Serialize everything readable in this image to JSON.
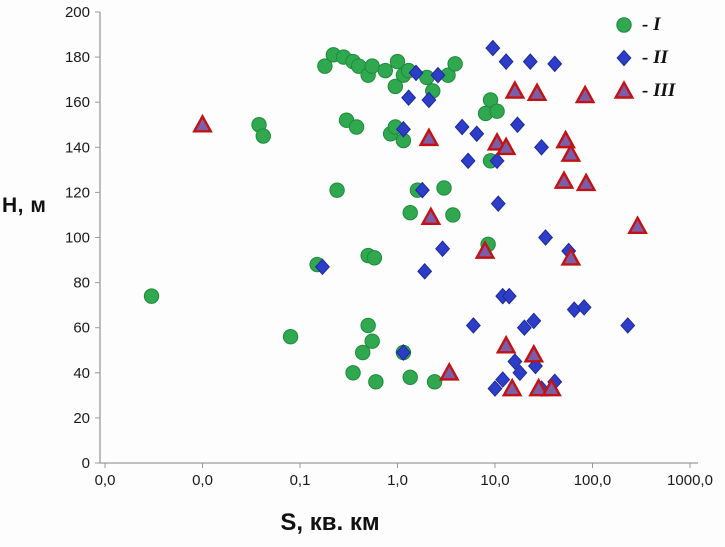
{
  "chart_data": {
    "type": "scatter",
    "title": "",
    "x_axis": {
      "label": "S, кв. км",
      "scale": "log",
      "min": 0.001,
      "max": 1000,
      "tick_values": [
        0.001,
        0.01,
        0.1,
        1,
        10,
        100,
        1000
      ],
      "tick_labels": [
        "0,0",
        "0,0",
        "0,1",
        "1,0",
        "10,0",
        "100,0",
        "1000,0"
      ]
    },
    "y_axis": {
      "label": "Н, м",
      "min": 0,
      "max": 200,
      "tick_step": 20,
      "tick_labels": [
        "0",
        "20",
        "40",
        "60",
        "80",
        "100",
        "120",
        "140",
        "160",
        "180",
        "200"
      ]
    },
    "grid": "off",
    "legend": {
      "position": "top-right",
      "entries": [
        {
          "label": "- I",
          "marker": "circle",
          "fill": "#2fa84f",
          "stroke": "#1f8a3c"
        },
        {
          "label": "- II",
          "marker": "diamond",
          "fill": "#2e3dc8",
          "stroke": "#1b2a9a"
        },
        {
          "label": "- III",
          "marker": "triangle",
          "fill": "#7a5fa8",
          "stroke": "#c41212"
        }
      ]
    },
    "series": [
      {
        "name": "I",
        "marker": "circle",
        "fill": "#2fa84f",
        "stroke": "#1f8a3c",
        "points": [
          [
            0.18,
            176
          ],
          [
            0.22,
            181
          ],
          [
            0.28,
            180
          ],
          [
            0.35,
            178
          ],
          [
            0.4,
            176
          ],
          [
            0.5,
            172
          ],
          [
            0.55,
            176
          ],
          [
            0.75,
            174
          ],
          [
            0.95,
            167
          ],
          [
            1.0,
            178
          ],
          [
            1.15,
            172
          ],
          [
            1.3,
            174
          ],
          [
            2.0,
            171
          ],
          [
            2.3,
            165
          ],
          [
            3.3,
            172
          ],
          [
            3.9,
            177
          ],
          [
            8.0,
            155
          ],
          [
            9.0,
            161
          ],
          [
            10.5,
            156
          ],
          [
            0.038,
            150
          ],
          [
            0.042,
            145
          ],
          [
            0.3,
            152
          ],
          [
            0.38,
            149
          ],
          [
            0.85,
            146
          ],
          [
            0.95,
            149
          ],
          [
            1.15,
            143
          ],
          [
            9.0,
            134
          ],
          [
            0.24,
            121
          ],
          [
            1.6,
            121
          ],
          [
            3.0,
            122
          ],
          [
            1.35,
            111
          ],
          [
            3.7,
            110
          ],
          [
            0.15,
            88
          ],
          [
            0.5,
            92
          ],
          [
            0.58,
            91
          ],
          [
            8.5,
            97
          ],
          [
            0.003,
            74
          ],
          [
            0.08,
            56
          ],
          [
            0.5,
            61
          ],
          [
            0.55,
            54
          ],
          [
            0.44,
            49
          ],
          [
            1.15,
            49
          ],
          [
            0.35,
            40
          ],
          [
            0.6,
            36
          ],
          [
            1.35,
            38
          ],
          [
            2.4,
            36
          ]
        ]
      },
      {
        "name": "II",
        "marker": "diamond",
        "fill": "#2e3dc8",
        "stroke": "#1b2a9a",
        "points": [
          [
            9.5,
            184
          ],
          [
            13,
            178
          ],
          [
            23,
            178
          ],
          [
            41,
            177
          ],
          [
            1.55,
            173
          ],
          [
            2.6,
            172
          ],
          [
            1.3,
            162
          ],
          [
            2.1,
            161
          ],
          [
            1.15,
            148
          ],
          [
            4.6,
            149
          ],
          [
            17,
            150
          ],
          [
            30,
            140
          ],
          [
            6.5,
            146
          ],
          [
            10.5,
            134
          ],
          [
            5.3,
            134
          ],
          [
            1.8,
            121
          ],
          [
            10.8,
            115
          ],
          [
            33,
            100
          ],
          [
            57,
            94
          ],
          [
            1.9,
            85
          ],
          [
            2.9,
            95
          ],
          [
            0.17,
            87
          ],
          [
            6.0,
            61
          ],
          [
            20,
            60
          ],
          [
            25,
            63
          ],
          [
            65,
            68
          ],
          [
            82,
            69
          ],
          [
            230,
            61
          ],
          [
            12,
            74
          ],
          [
            14,
            74
          ],
          [
            1.15,
            49
          ],
          [
            10,
            33
          ],
          [
            12,
            37
          ],
          [
            16,
            45
          ],
          [
            18,
            40
          ],
          [
            26,
            43
          ],
          [
            41,
            36
          ],
          [
            30,
            33
          ]
        ]
      },
      {
        "name": "III",
        "marker": "triangle",
        "fill": "#7a5fa8",
        "stroke": "#c41212",
        "points": [
          [
            0.01,
            150
          ],
          [
            2.1,
            144
          ],
          [
            16,
            165
          ],
          [
            27,
            164
          ],
          [
            84,
            163
          ],
          [
            10.5,
            142
          ],
          [
            13,
            140
          ],
          [
            53,
            143
          ],
          [
            60,
            137
          ],
          [
            51,
            125
          ],
          [
            86,
            124
          ],
          [
            290,
            105
          ],
          [
            2.2,
            109
          ],
          [
            7.9,
            94
          ],
          [
            60,
            91
          ],
          [
            3.4,
            40
          ],
          [
            13,
            52
          ],
          [
            25,
            48
          ],
          [
            15,
            33
          ],
          [
            28,
            33
          ],
          [
            38,
            33
          ]
        ]
      }
    ]
  }
}
